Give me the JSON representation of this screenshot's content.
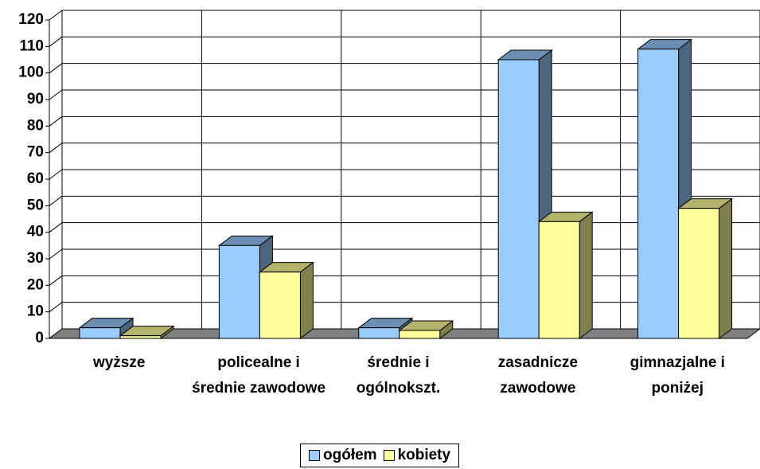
{
  "chart_data": {
    "type": "bar3d",
    "categories": [
      "wyższe",
      "policealne i średnie zawodowe",
      "średnie i ogólnokszt.",
      "zasadnicze zawodowe",
      "gimnazjalne i poniżej"
    ],
    "series": [
      {
        "name": "ogółem",
        "color": "#99ccff",
        "values": [
          4,
          35,
          4,
          105,
          109
        ]
      },
      {
        "name": "kobiety",
        "color": "#ffff99",
        "values": [
          1,
          25,
          3,
          44,
          49
        ]
      }
    ],
    "ylim": [
      0,
      120
    ],
    "yticks": [
      0,
      10,
      20,
      30,
      40,
      50,
      60,
      70,
      80,
      90,
      100,
      110,
      120
    ],
    "grid": true,
    "legend": "bottom"
  }
}
